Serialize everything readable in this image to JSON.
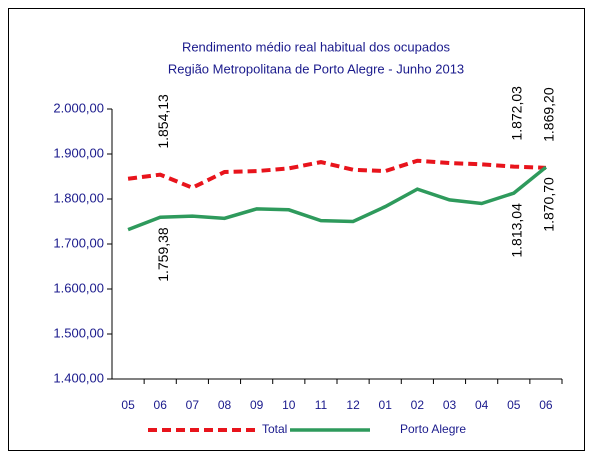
{
  "chart_data": {
    "type": "line",
    "title": "Rendimento médio real habitual dos ocupados",
    "subtitle": "Região Metropolitana de Porto Alegre - Junho 2013",
    "categories": [
      "05",
      "06",
      "07",
      "08",
      "09",
      "10",
      "11",
      "12",
      "01",
      "02",
      "03",
      "04",
      "05",
      "06"
    ],
    "series": [
      {
        "name": "Total",
        "color": "#e8141c",
        "dashed": true,
        "values": [
          1845,
          1854.13,
          1825,
          1860,
          1862,
          1868,
          1882,
          1865,
          1862,
          1885,
          1880,
          1877,
          1872.03,
          1869.2
        ],
        "value_labels": [
          null,
          "1.854,13",
          null,
          null,
          null,
          null,
          null,
          null,
          null,
          null,
          null,
          null,
          "1.872,03",
          "1.869,20"
        ]
      },
      {
        "name": "Porto Alegre",
        "color": "#2e9a5c",
        "dashed": false,
        "values": [
          1732,
          1759.38,
          1762,
          1757,
          1778,
          1776,
          1752,
          1750,
          1783,
          1822,
          1798,
          1790,
          1813.04,
          1870.7
        ],
        "value_labels": [
          null,
          "1.759,38",
          null,
          null,
          null,
          null,
          null,
          null,
          null,
          null,
          null,
          null,
          "1.813,04",
          "1.870,70"
        ]
      }
    ],
    "ylim": [
      1400,
      2000
    ],
    "yticks": [
      {
        "value": 1400,
        "label": "1.400,00"
      },
      {
        "value": 1500,
        "label": "1.500,00"
      },
      {
        "value": 1600,
        "label": "1.600,00"
      },
      {
        "value": 1700,
        "label": "1.700,00"
      },
      {
        "value": 1800,
        "label": "1.800,00"
      },
      {
        "value": 1900,
        "label": "1.900,00"
      },
      {
        "value": 2000,
        "label": "2.000,00"
      }
    ],
    "legend": "bottom"
  }
}
